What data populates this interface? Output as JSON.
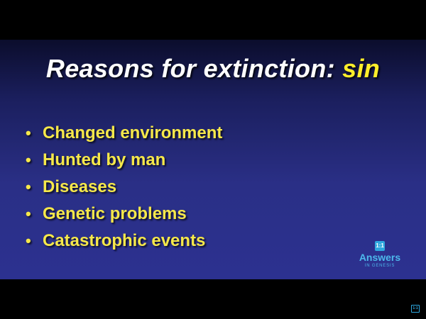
{
  "slide": {
    "title_main": "Reasons for extinction: ",
    "title_accent": "sin",
    "bullets": [
      "Changed environment",
      "Hunted by man",
      "Diseases",
      "Genetic problems",
      "Catastrophic events"
    ]
  },
  "logo": {
    "badge": "1:1",
    "name": "Answers",
    "subtitle": "IN GENESIS"
  },
  "corner": {
    "badge": "1:1"
  },
  "colors": {
    "title": "#ffffff",
    "accent": "#ffee2a",
    "bullet_text": "#f6e84a",
    "logo": "#4db8ec",
    "background_top": "#0b0d2c",
    "background_bottom": "#2c3190"
  }
}
